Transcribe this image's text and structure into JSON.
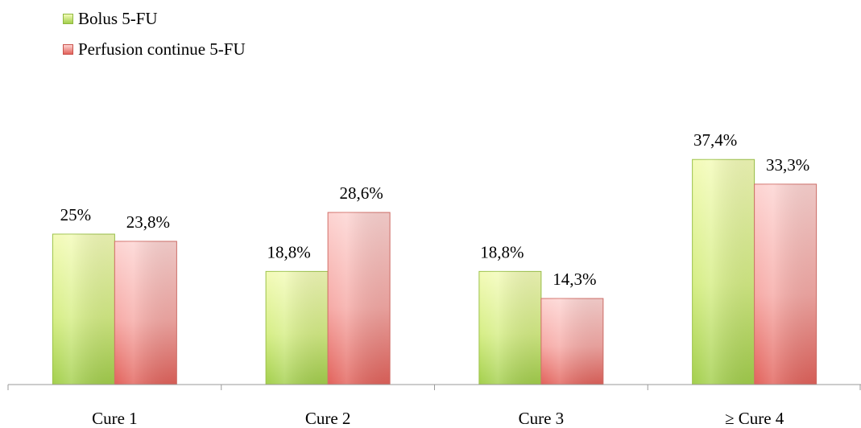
{
  "chart_data": {
    "type": "bar",
    "categories": [
      "Cure 1",
      "Cure 2",
      "Cure 3",
      "≥ Cure 4"
    ],
    "series": [
      {
        "name": "Bolus 5-FU",
        "values": [
          25,
          18.8,
          18.8,
          37.4
        ],
        "labels": [
          "25%",
          "18,8%",
          "18,8%",
          "37,4%"
        ]
      },
      {
        "name": "Perfusion continue 5-FU",
        "values": [
          23.8,
          28.6,
          14.3,
          33.3
        ],
        "labels": [
          "23,8%",
          "28,6%",
          "14,3%",
          "33,3%"
        ]
      }
    ],
    "ylim": [
      0,
      40
    ],
    "grid": false,
    "legend_position": "top-left",
    "colors": {
      "bolus_top": "#f3fbb8",
      "bolus_mid": "#d6ee86",
      "bolus_bottom": "#a3cf4c",
      "perf_top": "#fdd4d2",
      "perf_mid": "#f6aaa6",
      "perf_bottom": "#e2625b",
      "axis": "#9a9a9a"
    }
  }
}
